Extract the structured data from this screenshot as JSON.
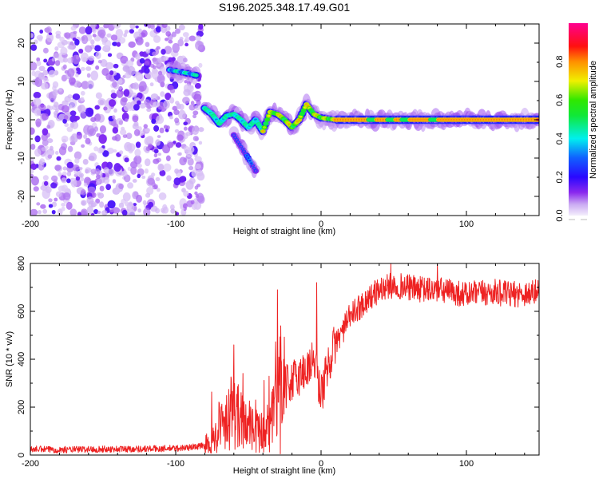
{
  "figure_title": "S196.2025.348.17.49.G01",
  "chart_data": [
    {
      "type": "heatmap",
      "title": "S196.2025.348.17.49.G01",
      "xlabel": "Height of straight line (km)",
      "ylabel": "Frequency (Hz)",
      "xlim": [
        -200,
        150
      ],
      "ylim": [
        -25,
        25
      ],
      "xticks": [
        -200,
        -100,
        0,
        100
      ],
      "xtick_labels": [
        "-200",
        "-100",
        "0",
        "100"
      ],
      "yticks": [
        -20,
        -10,
        0,
        10,
        20
      ],
      "ytick_labels": [
        "-20",
        "-10",
        "0",
        "10",
        "20"
      ],
      "colorbar": {
        "label": "Normalized spectral amplitude",
        "range": [
          0.0,
          1.0
        ],
        "ticks": [
          0.0,
          0.2,
          0.4,
          0.6,
          0.8
        ],
        "tick_labels": [
          "0.0",
          "0.2",
          "0.4",
          "0.6",
          "0.8"
        ],
        "colormap": [
          "#ffffff",
          "#d8c4f5",
          "#8a2be2",
          "#2000ff",
          "#00ffff",
          "#00ff00",
          "#ffff00",
          "#ff0000",
          "#ff0080"
        ]
      },
      "features": [
        {
          "name": "noise region",
          "x_range": [
            -200,
            -82
          ],
          "freq_range": [
            -25,
            25
          ],
          "amplitude": [
            0.05,
            0.25
          ]
        },
        {
          "name": "upper branch",
          "points": [
            [
              -104,
              13
            ],
            [
              -97,
              12.5
            ],
            [
              -90,
              12
            ],
            [
              -85,
              11.5
            ]
          ],
          "amplitude": 0.35
        },
        {
          "name": "main ridge",
          "points": [
            [
              -80,
              3
            ],
            [
              -75,
              1.5
            ],
            [
              -70,
              -1
            ],
            [
              -65,
              1
            ],
            [
              -60,
              1.5
            ],
            [
              -55,
              0
            ],
            [
              -50,
              -2
            ],
            [
              -45,
              0
            ],
            [
              -40,
              -3
            ],
            [
              -35,
              2
            ],
            [
              -30,
              1.5
            ],
            [
              -25,
              0
            ],
            [
              -20,
              -2
            ],
            [
              -15,
              0
            ],
            [
              -10,
              4
            ],
            [
              -5,
              1.5
            ],
            [
              0,
              0.5
            ],
            [
              10,
              0
            ],
            [
              150,
              0
            ]
          ],
          "amplitude": [
            0.3,
            1.0
          ]
        },
        {
          "name": "lower branch",
          "points": [
            [
              -60,
              -4
            ],
            [
              -50,
              -10
            ],
            [
              -44,
              -14
            ]
          ],
          "amplitude": 0.2
        }
      ]
    },
    {
      "type": "line",
      "xlabel": "Height of straight line (km)",
      "ylabel": "SNR (10 * v/v)",
      "xlim": [
        -200,
        150
      ],
      "ylim": [
        0,
        800
      ],
      "xticks": [
        -200,
        -100,
        0,
        100
      ],
      "xtick_labels": [
        "-200",
        "-100",
        "0",
        "100"
      ],
      "yticks": [
        0,
        200,
        400,
        600,
        800
      ],
      "ytick_labels": [
        "0",
        "200",
        "400",
        "600",
        "800"
      ],
      "series": [
        {
          "name": "SNR",
          "color": "#ee2222",
          "x": [
            -200,
            -180,
            -160,
            -140,
            -120,
            -100,
            -90,
            -80,
            -75,
            -70,
            -65,
            -60,
            -55,
            -50,
            -45,
            -40,
            -35,
            -30,
            -25,
            -20,
            -15,
            -10,
            -5,
            0,
            5,
            10,
            15,
            20,
            30,
            40,
            50,
            60,
            70,
            80,
            90,
            100,
            110,
            120,
            130,
            140,
            150
          ],
          "values": [
            25,
            22,
            24,
            25,
            26,
            28,
            32,
            40,
            60,
            100,
            170,
            180,
            140,
            110,
            100,
            90,
            110,
            260,
            280,
            310,
            330,
            360,
            400,
            250,
            380,
            470,
            520,
            580,
            640,
            690,
            710,
            700,
            690,
            690,
            680,
            670,
            675,
            680,
            670,
            675,
            680
          ]
        }
      ],
      "annotations": [
        {
          "x": -30,
          "peak": 690
        },
        {
          "x": -60,
          "peak": 460
        },
        {
          "x": -3,
          "peak": 720
        },
        {
          "x": 48,
          "peak": 800
        },
        {
          "x": 80,
          "peak": 800
        }
      ]
    }
  ]
}
